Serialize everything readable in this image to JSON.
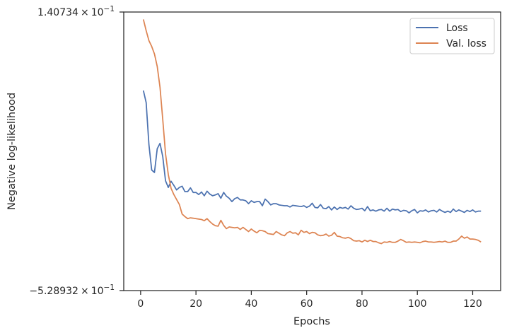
{
  "chart_data": {
    "type": "line",
    "title": "",
    "xlabel": "Epochs",
    "ylabel": "Negative log-likelihood",
    "xlim": [
      -6.1,
      130.1
    ],
    "ylim": [
      -0.528932,
      0.140734
    ],
    "y_scale": "symlog",
    "xticks": [
      0,
      20,
      40,
      60,
      80,
      100,
      120
    ],
    "xtick_labels": [
      "0",
      "20",
      "40",
      "60",
      "80",
      "100",
      "120"
    ],
    "ytick_labels": {
      "top": {
        "mantissa": "1.40734",
        "base": "10",
        "exponent": "−1"
      },
      "bottom": {
        "mantissa": "−5.28932",
        "base": "10",
        "exponent": "−1"
      }
    },
    "grid": false,
    "legend_position": "top-right",
    "legend": [
      "Loss",
      "Val. loss"
    ],
    "colors": {
      "Loss": "#4c72b0",
      "Val. loss": "#dd8452",
      "axes": "#262626"
    },
    "x": [
      1,
      2,
      3,
      4,
      5,
      6,
      7,
      8,
      9,
      10,
      11,
      12,
      13,
      14,
      15,
      16,
      17,
      18,
      19,
      20,
      21,
      22,
      23,
      24,
      25,
      26,
      27,
      28,
      29,
      30,
      31,
      32,
      33,
      34,
      35,
      36,
      37,
      38,
      39,
      40,
      41,
      42,
      43,
      44,
      45,
      46,
      47,
      48,
      49,
      50,
      51,
      52,
      53,
      54,
      55,
      56,
      57,
      58,
      59,
      60,
      61,
      62,
      63,
      64,
      65,
      66,
      67,
      68,
      69,
      70,
      71,
      72,
      73,
      74,
      75,
      76,
      77,
      78,
      79,
      80,
      81,
      82,
      83,
      84,
      85,
      86,
      87,
      88,
      89,
      90,
      91,
      92,
      93,
      94,
      95,
      96,
      97,
      98,
      99,
      100,
      101,
      102,
      103,
      104,
      105,
      106,
      107,
      108,
      109,
      110,
      111,
      112,
      113,
      114,
      115,
      116,
      117,
      118,
      119,
      120,
      121,
      122,
      123
    ],
    "series": [
      {
        "name": "Loss",
        "values": [
          -0.048,
          -0.077,
          -0.178,
          -0.239,
          -0.245,
          -0.188,
          -0.175,
          -0.207,
          -0.265,
          -0.281,
          -0.266,
          -0.276,
          -0.287,
          -0.281,
          -0.278,
          -0.291,
          -0.291,
          -0.282,
          -0.293,
          -0.293,
          -0.298,
          -0.292,
          -0.301,
          -0.29,
          -0.297,
          -0.301,
          -0.299,
          -0.296,
          -0.307,
          -0.293,
          -0.302,
          -0.307,
          -0.315,
          -0.308,
          -0.305,
          -0.311,
          -0.311,
          -0.313,
          -0.32,
          -0.313,
          -0.317,
          -0.315,
          -0.315,
          -0.325,
          -0.309,
          -0.315,
          -0.323,
          -0.32,
          -0.32,
          -0.323,
          -0.324,
          -0.325,
          -0.325,
          -0.328,
          -0.324,
          -0.325,
          -0.326,
          -0.327,
          -0.325,
          -0.329,
          -0.326,
          -0.319,
          -0.329,
          -0.33,
          -0.322,
          -0.331,
          -0.332,
          -0.327,
          -0.335,
          -0.328,
          -0.334,
          -0.329,
          -0.331,
          -0.329,
          -0.333,
          -0.325,
          -0.331,
          -0.334,
          -0.333,
          -0.331,
          -0.337,
          -0.327,
          -0.337,
          -0.335,
          -0.338,
          -0.335,
          -0.334,
          -0.338,
          -0.331,
          -0.338,
          -0.333,
          -0.335,
          -0.334,
          -0.339,
          -0.336,
          -0.337,
          -0.342,
          -0.337,
          -0.334,
          -0.342,
          -0.337,
          -0.338,
          -0.335,
          -0.34,
          -0.337,
          -0.336,
          -0.34,
          -0.334,
          -0.338,
          -0.341,
          -0.338,
          -0.341,
          -0.333,
          -0.339,
          -0.335,
          -0.338,
          -0.341,
          -0.336,
          -0.339,
          -0.335,
          -0.34,
          -0.338,
          -0.338
        ]
      },
      {
        "name": "Val. loss",
        "values": [
          0.123,
          0.096,
          0.072,
          0.058,
          0.04,
          0.01,
          -0.04,
          -0.118,
          -0.2,
          -0.25,
          -0.283,
          -0.298,
          -0.31,
          -0.322,
          -0.345,
          -0.351,
          -0.356,
          -0.354,
          -0.355,
          -0.356,
          -0.357,
          -0.358,
          -0.361,
          -0.356,
          -0.363,
          -0.369,
          -0.373,
          -0.374,
          -0.36,
          -0.372,
          -0.38,
          -0.376,
          -0.377,
          -0.378,
          -0.377,
          -0.382,
          -0.377,
          -0.382,
          -0.387,
          -0.381,
          -0.386,
          -0.39,
          -0.384,
          -0.385,
          -0.387,
          -0.392,
          -0.393,
          -0.394,
          -0.387,
          -0.391,
          -0.395,
          -0.397,
          -0.39,
          -0.387,
          -0.391,
          -0.39,
          -0.395,
          -0.384,
          -0.389,
          -0.387,
          -0.392,
          -0.389,
          -0.39,
          -0.395,
          -0.397,
          -0.396,
          -0.393,
          -0.398,
          -0.396,
          -0.389,
          -0.398,
          -0.399,
          -0.402,
          -0.403,
          -0.401,
          -0.404,
          -0.409,
          -0.41,
          -0.409,
          -0.412,
          -0.408,
          -0.411,
          -0.408,
          -0.411,
          -0.411,
          -0.414,
          -0.416,
          -0.412,
          -0.413,
          -0.411,
          -0.413,
          -0.413,
          -0.41,
          -0.406,
          -0.409,
          -0.413,
          -0.412,
          -0.413,
          -0.412,
          -0.413,
          -0.414,
          -0.411,
          -0.41,
          -0.412,
          -0.412,
          -0.413,
          -0.412,
          -0.411,
          -0.412,
          -0.41,
          -0.413,
          -0.413,
          -0.41,
          -0.41,
          -0.405,
          -0.398,
          -0.403,
          -0.4,
          -0.405,
          -0.405,
          -0.406,
          -0.408,
          -0.412
        ]
      }
    ]
  }
}
